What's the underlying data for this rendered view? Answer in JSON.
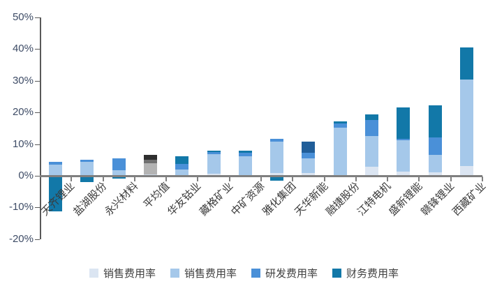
{
  "chart": {
    "title": "",
    "axis": {
      "y_tick_labels": [
        "50%",
        "40%",
        "30%",
        "20%",
        "10%",
        "0%",
        "-10%",
        "-20%"
      ],
      "y_label_color": "#3e4c66",
      "x_label_color": "#3a3a3a",
      "axis_line_color": "#595959",
      "baseline_color": "#7f7f7f"
    },
    "legend_position": "bottom"
  },
  "chart_data": {
    "type": "bar",
    "stacked": true,
    "title": "",
    "xlabel": "",
    "ylabel": "",
    "grid": false,
    "ylim": [
      -20,
      50
    ],
    "y_step": 10,
    "categories": [
      "天齐锂业",
      "盐湖股份",
      "永兴材料",
      "平均值",
      "华友钴业",
      "藏格矿业",
      "中矿资源",
      "雅化集团",
      "天华新能",
      "融捷股份",
      "江特电机",
      "盛新锂能",
      "赣锋锂业",
      "西藏矿业"
    ],
    "series": [
      {
        "name": "销售费用率",
        "color": "#dbe5f2",
        "values": [
          0,
          0,
          0,
          0.4,
          0,
          0.7,
          0,
          0.8,
          0.8,
          0,
          2.9,
          1.3,
          1.1,
          3.0
        ]
      },
      {
        "name": "销售费用率",
        "color": "#a5c8ea",
        "values": [
          3.5,
          4.5,
          1.8,
          3.6,
          2.0,
          6.1,
          6.1,
          9.9,
          4.6,
          15.2,
          9.7,
          9.9,
          5.5,
          27.4
        ]
      },
      {
        "name": "研发费用率",
        "color": "#4a90d8",
        "values": [
          0.9,
          0.6,
          3.7,
          1.1,
          1.7,
          0.7,
          1.1,
          1.0,
          1.9,
          1.3,
          5.0,
          0.5,
          5.5,
          0
        ]
      },
      {
        "name": "财务费用率",
        "color": "#1278a8",
        "values": [
          -11.2,
          -1.9,
          -0.9,
          1.4,
          2.5,
          0.4,
          0.7,
          -1.5,
          3.6,
          0.7,
          1.8,
          9.9,
          10.1,
          10.2
        ]
      }
    ],
    "color_overrides": [
      {
        "category_index": 3,
        "colors": [
          "#ccd9e6",
          "#b3b3b3",
          "#707070",
          "#2e2e2e"
        ],
        "note": "平均值 bar drawn in grayscale"
      },
      {
        "category_index": 8,
        "series_index": 3,
        "color": "#215e99",
        "note": "天华新能 top segment navy blue"
      }
    ],
    "legend": [
      {
        "label": "销售费用率",
        "color": "#dbe5f2"
      },
      {
        "label": "销售费用率",
        "color": "#a5c8ea"
      },
      {
        "label": "研发费用率",
        "color": "#4a90d8"
      },
      {
        "label": "财务费用率",
        "color": "#1278a8"
      }
    ]
  }
}
